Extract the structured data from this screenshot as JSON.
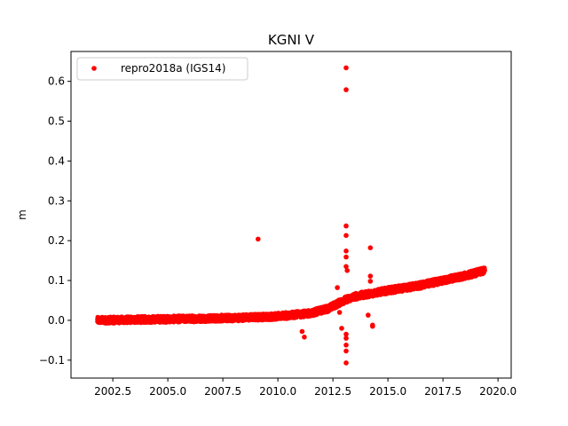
{
  "chart_data": {
    "type": "scatter",
    "title": "KGNI V",
    "xlabel": "",
    "ylabel": "m",
    "xlim": [
      2000.6,
      2020.6
    ],
    "ylim": [
      -0.145,
      0.675
    ],
    "xticks": [
      2002.5,
      2005.0,
      2007.5,
      2010.0,
      2012.5,
      2015.0,
      2017.5,
      2020.0
    ],
    "xtick_labels": [
      "2002.5",
      "2005.0",
      "2007.5",
      "2010.0",
      "2012.5",
      "2015.0",
      "2017.5",
      "2020.0"
    ],
    "yticks": [
      -0.1,
      0.0,
      0.1,
      0.2,
      0.3,
      0.4,
      0.5,
      0.6
    ],
    "ytick_labels": [
      "−0.1",
      "0.0",
      "0.1",
      "0.2",
      "0.3",
      "0.4",
      "0.5",
      "0.6"
    ],
    "grid": false,
    "legend_position": "top-left",
    "series": [
      {
        "name": "repro2018a (IGS14)",
        "color": "#ff0000",
        "marker": "circle",
        "trend": {
          "x": [
            2001.8,
            2005.0,
            2008.0,
            2010.0,
            2011.5,
            2012.3,
            2013.0,
            2013.5,
            2015.0,
            2016.5,
            2017.5,
            2018.5,
            2019.4
          ],
          "y": [
            0.0,
            0.003,
            0.006,
            0.01,
            0.018,
            0.03,
            0.05,
            0.06,
            0.075,
            0.088,
            0.1,
            0.112,
            0.125
          ]
        },
        "spread": 0.008,
        "outliers": {
          "x": [
            2009.1,
            2013.1,
            2013.1,
            2013.1,
            2013.1,
            2013.1,
            2013.1,
            2013.15,
            2013.1,
            2013.1,
            2013.1,
            2013.1,
            2013.1,
            2013.1,
            2014.2,
            2014.2,
            2014.3,
            2014.3,
            2014.1,
            2014.2,
            2011.1,
            2011.2,
            2012.7,
            2012.8,
            2012.9
          ],
          "y": [
            0.204,
            0.634,
            0.579,
            0.237,
            0.213,
            0.174,
            0.135,
            0.125,
            0.159,
            -0.035,
            -0.045,
            -0.062,
            -0.077,
            -0.107,
            0.182,
            0.111,
            -0.012,
            -0.015,
            0.013,
            0.098,
            -0.028,
            -0.042,
            0.082,
            0.02,
            -0.02
          ]
        }
      }
    ]
  }
}
